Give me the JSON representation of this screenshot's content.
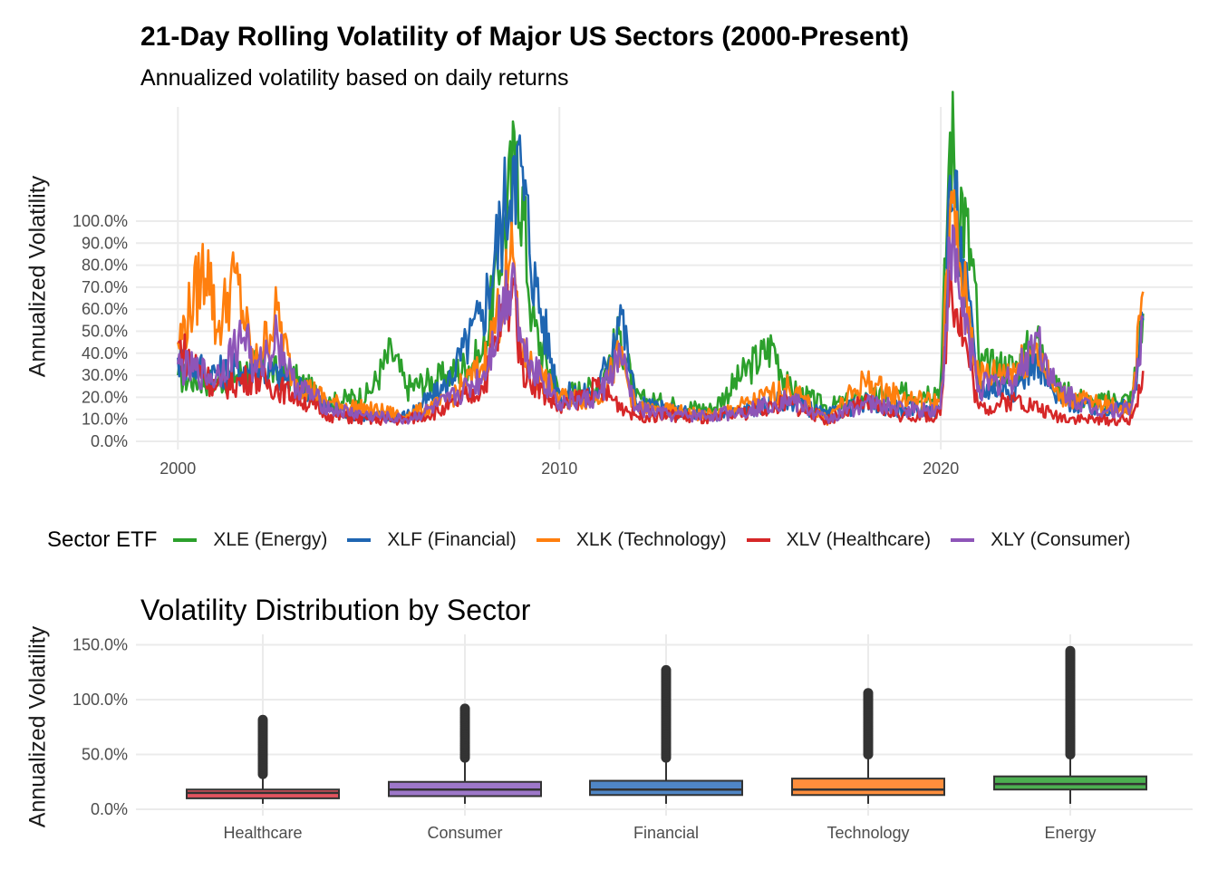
{
  "title": "21-Day Rolling Volatility of Major US Sectors (2000-Present)",
  "subtitle": "Annualized volatility based on daily returns",
  "chart_data": [
    {
      "type": "line",
      "ylabel": "Annualized Volatility",
      "ylim": [
        0,
        100
      ],
      "x_ticks": [
        "2000",
        "2010",
        "2020"
      ],
      "y_ticks": [
        "0.0%",
        "10.0%",
        "20.0%",
        "30.0%",
        "40.0%",
        "50.0%",
        "60.0%",
        "70.0%",
        "80.0%",
        "90.0%",
        "100.0%"
      ],
      "legend_title": "Sector ETF",
      "legend_position": "bottom",
      "grid": true,
      "series": [
        {
          "name": "XLE (Energy)",
          "color": "#2CA02C",
          "x": [
            2000,
            2001,
            2002,
            2003,
            2004,
            2005,
            2005.6,
            2006,
            2007,
            2008,
            2008.9,
            2009.3,
            2010,
            2011,
            2011.6,
            2012,
            2013,
            2014,
            2015,
            2015.6,
            2016,
            2017,
            2018,
            2019,
            2020,
            2020.25,
            2020.9,
            2021,
            2022,
            2022.5,
            2023,
            2024,
            2025,
            2025.3
          ],
          "values": [
            30,
            28,
            35,
            30,
            18,
            22,
            42,
            25,
            30,
            40,
            137,
            55,
            22,
            25,
            50,
            20,
            17,
            15,
            35,
            45,
            25,
            16,
            20,
            22,
            25,
            145,
            72,
            35,
            35,
            48,
            25,
            18,
            20,
            58
          ]
        },
        {
          "name": "XLF (Financial)",
          "color": "#1F66B2",
          "x": [
            2000,
            2001,
            2002,
            2003,
            2004,
            2005,
            2006,
            2007,
            2008,
            2008.8,
            2009,
            2009.4,
            2010,
            2011,
            2011.6,
            2012,
            2013,
            2014,
            2015,
            2016,
            2017,
            2018,
            2019,
            2020,
            2020.25,
            2021,
            2022,
            2022.5,
            2023,
            2024,
            2025,
            2025.3
          ],
          "values": [
            38,
            32,
            35,
            28,
            15,
            12,
            12,
            25,
            60,
            130,
            125,
            70,
            22,
            22,
            62,
            18,
            14,
            12,
            15,
            20,
            12,
            18,
            15,
            15,
            125,
            25,
            25,
            40,
            20,
            15,
            16,
            55
          ]
        },
        {
          "name": "XLK (Technology)",
          "color": "#FF7F0E",
          "x": [
            2000,
            2000.8,
            2001,
            2001.5,
            2002,
            2002.6,
            2003,
            2004,
            2005,
            2006,
            2007,
            2008,
            2008.8,
            2009,
            2010,
            2011,
            2011.6,
            2012,
            2013,
            2014,
            2015,
            2016,
            2017,
            2018,
            2019,
            2020,
            2020.25,
            2021,
            2022,
            2022.5,
            2023,
            2024,
            2025,
            2025.3
          ],
          "values": [
            45,
            87,
            50,
            78,
            35,
            60,
            30,
            18,
            15,
            12,
            18,
            35,
            85,
            40,
            20,
            20,
            40,
            15,
            14,
            12,
            18,
            25,
            10,
            28,
            20,
            18,
            108,
            30,
            35,
            45,
            22,
            18,
            15,
            68
          ]
        },
        {
          "name": "XLV (Healthcare)",
          "color": "#D62728",
          "x": [
            2000,
            2001,
            2002,
            2003,
            2004,
            2005,
            2006,
            2007,
            2008,
            2008.8,
            2009,
            2010,
            2011,
            2012,
            2013,
            2014,
            2015,
            2016,
            2017,
            2018,
            2019,
            2020,
            2020.25,
            2021,
            2022,
            2023,
            2024,
            2025,
            2025.3
          ],
          "values": [
            45,
            25,
            30,
            22,
            12,
            10,
            10,
            15,
            25,
            75,
            35,
            15,
            25,
            12,
            12,
            10,
            14,
            18,
            10,
            18,
            12,
            12,
            80,
            15,
            20,
            12,
            10,
            10,
            32
          ]
        },
        {
          "name": "XLY (Consumer)",
          "color": "#8E55B8",
          "x": [
            2000,
            2001,
            2001.8,
            2002,
            2002.6,
            2003,
            2004,
            2005,
            2006,
            2007,
            2008,
            2008.8,
            2009,
            2010,
            2011,
            2011.6,
            2012,
            2013,
            2014,
            2015,
            2016,
            2017,
            2018,
            2019,
            2020,
            2020.25,
            2021,
            2022,
            2022.5,
            2023,
            2024,
            2025,
            2025.3
          ],
          "values": [
            35,
            30,
            52,
            30,
            50,
            28,
            15,
            12,
            10,
            18,
            30,
            82,
            45,
            18,
            20,
            40,
            15,
            12,
            12,
            15,
            20,
            10,
            18,
            15,
            15,
            92,
            25,
            30,
            50,
            25,
            15,
            15,
            56
          ]
        }
      ]
    },
    {
      "type": "boxplot",
      "title": "Volatility Distribution by Sector",
      "ylabel": "Annualized Volatility",
      "ylim": [
        0,
        150
      ],
      "y_ticks": [
        "0.0%",
        "50.0%",
        "100.0%",
        "150.0%"
      ],
      "categories": [
        "Healthcare",
        "Consumer",
        "Financial",
        "Technology",
        "Energy"
      ],
      "boxes": [
        {
          "name": "Healthcare",
          "color": "#E3545F",
          "whisker_low": 5,
          "q1": 10,
          "median": 15,
          "q3": 18,
          "whisker_high": 30,
          "outlier_max": 83
        },
        {
          "name": "Consumer",
          "color": "#9D77C9",
          "whisker_low": 5,
          "q1": 12,
          "median": 18,
          "q3": 25,
          "whisker_high": 45,
          "outlier_max": 93
        },
        {
          "name": "Financial",
          "color": "#4F86C6",
          "whisker_low": 5,
          "q1": 13,
          "median": 18,
          "q3": 26,
          "whisker_high": 45,
          "outlier_max": 127
        },
        {
          "name": "Technology",
          "color": "#FF8E3C",
          "whisker_low": 5,
          "q1": 13,
          "median": 18,
          "q3": 28,
          "whisker_high": 48,
          "outlier_max": 107
        },
        {
          "name": "Energy",
          "color": "#4CAF50",
          "whisker_low": 5,
          "q1": 18,
          "median": 23,
          "q3": 30,
          "whisker_high": 48,
          "outlier_max": 145
        }
      ]
    }
  ]
}
